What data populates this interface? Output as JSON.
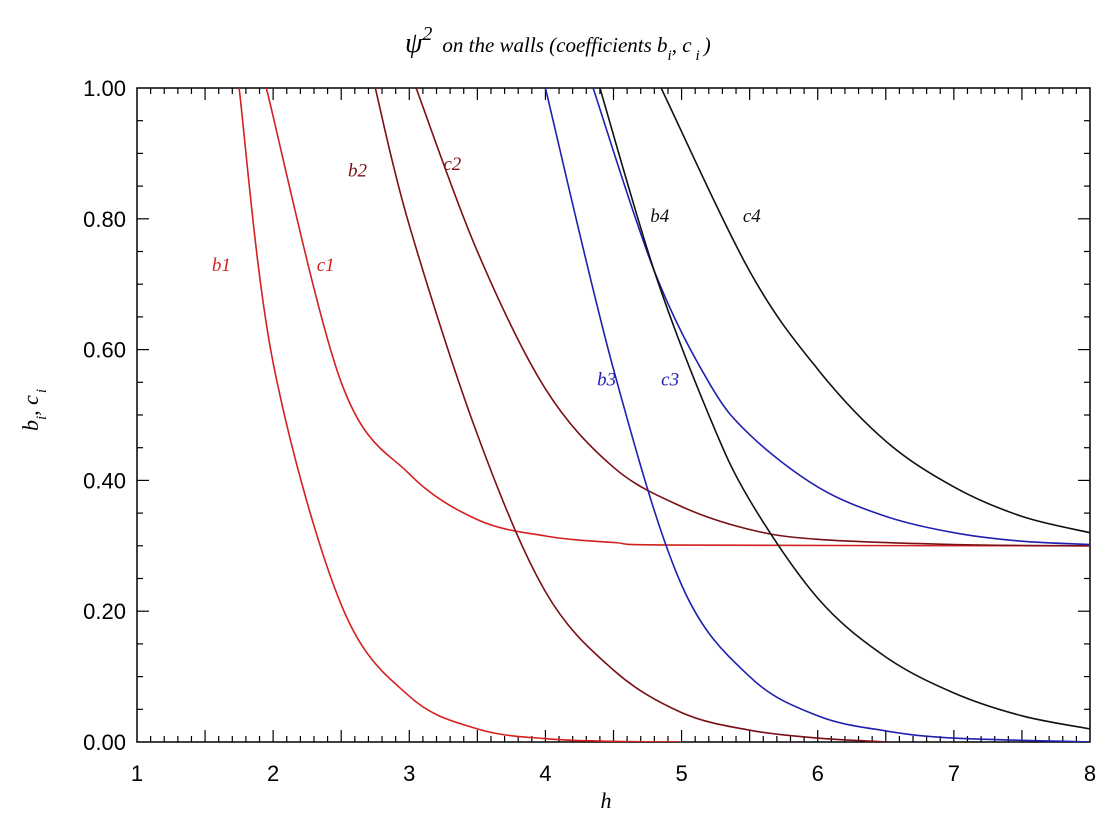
{
  "chart_data": {
    "type": "line",
    "title": {
      "symbol": "ψ",
      "superscript": "2",
      "text": "on the walls (coefficients b",
      "sub1": "i",
      "mid": ", c",
      "sub2": "i",
      "end": ")"
    },
    "xlabel": "h",
    "ylabel": {
      "b": "b",
      "sub1": "i",
      "mid": ", c",
      "sub2": "i"
    },
    "xlim": [
      1,
      8
    ],
    "ylim": [
      0,
      1
    ],
    "x_ticks": [
      "1",
      "2",
      "3",
      "4",
      "5",
      "6",
      "7",
      "8"
    ],
    "y_ticks": [
      "0.00",
      "0.20",
      "0.40",
      "0.60",
      "0.80",
      "1.00"
    ],
    "grid": false,
    "series": [
      {
        "name": "b1",
        "color": "#d42020",
        "asymptote": 0.0,
        "points": [
          [
            1.75,
            1.0
          ],
          [
            2.0,
            0.58
          ],
          [
            2.5,
            0.21
          ],
          [
            3.0,
            0.07
          ],
          [
            3.5,
            0.02
          ],
          [
            4.0,
            0.005
          ],
          [
            4.5,
            0.001
          ],
          [
            5.0,
            0.0
          ]
        ]
      },
      {
        "name": "c1",
        "color": "#d42020",
        "asymptote": 0.3,
        "points": [
          [
            1.95,
            1.0
          ],
          [
            2.5,
            0.55
          ],
          [
            3.0,
            0.41
          ],
          [
            3.5,
            0.34
          ],
          [
            4.0,
            0.315
          ],
          [
            4.5,
            0.305
          ],
          [
            5.0,
            0.301
          ],
          [
            8.0,
            0.3
          ]
        ]
      },
      {
        "name": "b2",
        "color": "#7a0f15",
        "asymptote": 0.0,
        "points": [
          [
            2.75,
            1.0
          ],
          [
            3.0,
            0.79
          ],
          [
            3.5,
            0.47
          ],
          [
            4.0,
            0.23
          ],
          [
            4.5,
            0.11
          ],
          [
            5.0,
            0.045
          ],
          [
            5.5,
            0.018
          ],
          [
            6.0,
            0.006
          ],
          [
            6.5,
            0.0
          ]
        ]
      },
      {
        "name": "c2",
        "color": "#7a0f15",
        "asymptote": 0.3,
        "points": [
          [
            3.05,
            1.0
          ],
          [
            3.5,
            0.75
          ],
          [
            4.0,
            0.54
          ],
          [
            4.5,
            0.42
          ],
          [
            5.0,
            0.36
          ],
          [
            5.5,
            0.325
          ],
          [
            6.0,
            0.31
          ],
          [
            7.0,
            0.302
          ],
          [
            8.0,
            0.3
          ]
        ]
      },
      {
        "name": "b3",
        "color": "#2020b0",
        "asymptote": 0.0,
        "points": [
          [
            4.0,
            1.0
          ],
          [
            4.5,
            0.57
          ],
          [
            5.0,
            0.24
          ],
          [
            5.5,
            0.1
          ],
          [
            6.0,
            0.04
          ],
          [
            6.5,
            0.017
          ],
          [
            7.0,
            0.006
          ],
          [
            8.0,
            0.0
          ]
        ]
      },
      {
        "name": "c3",
        "color": "#2020b0",
        "asymptote": 0.3,
        "points": [
          [
            4.35,
            1.0
          ],
          [
            4.8,
            0.72
          ],
          [
            5.2,
            0.55
          ],
          [
            5.5,
            0.47
          ],
          [
            6.0,
            0.39
          ],
          [
            6.5,
            0.345
          ],
          [
            7.0,
            0.32
          ],
          [
            7.5,
            0.307
          ],
          [
            8.0,
            0.302
          ]
        ]
      },
      {
        "name": "b4",
        "color": "#111111",
        "asymptote": 0.0,
        "points": [
          [
            4.4,
            1.0
          ],
          [
            4.8,
            0.72
          ],
          [
            5.2,
            0.5
          ],
          [
            5.5,
            0.37
          ],
          [
            6.0,
            0.22
          ],
          [
            6.5,
            0.13
          ],
          [
            7.0,
            0.075
          ],
          [
            7.5,
            0.04
          ],
          [
            8.0,
            0.02
          ]
        ]
      },
      {
        "name": "c4",
        "color": "#111111",
        "asymptote": 0.3,
        "points": [
          [
            4.85,
            1.0
          ],
          [
            5.5,
            0.72
          ],
          [
            6.0,
            0.57
          ],
          [
            6.5,
            0.46
          ],
          [
            7.0,
            0.39
          ],
          [
            7.5,
            0.345
          ],
          [
            8.0,
            0.32
          ]
        ]
      }
    ],
    "annotations": [
      {
        "text": "b1",
        "x": 1.55,
        "y": 0.72,
        "color": "#d42020"
      },
      {
        "text": "c1",
        "x": 2.32,
        "y": 0.72,
        "color": "#d42020"
      },
      {
        "text": "b2",
        "x": 2.55,
        "y": 0.865,
        "color": "#7a0f15"
      },
      {
        "text": "c2",
        "x": 3.25,
        "y": 0.875,
        "color": "#7a0f15"
      },
      {
        "text": "b3",
        "x": 4.38,
        "y": 0.545,
        "color": "#2020b0"
      },
      {
        "text": "c3",
        "x": 4.85,
        "y": 0.545,
        "color": "#2020b0"
      },
      {
        "text": "b4",
        "x": 4.77,
        "y": 0.795,
        "color": "#111111"
      },
      {
        "text": "c4",
        "x": 5.45,
        "y": 0.795,
        "color": "#111111"
      }
    ]
  }
}
